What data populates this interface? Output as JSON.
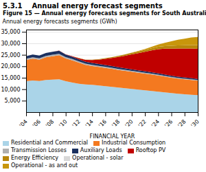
{
  "chart_data": {
    "type": "area",
    "stacked": true,
    "title": "5.3.1    Annual energy forecast segments",
    "subtitle": "Figure 15 — Annual energy forecasts segments for South Australia",
    "xlabel": "FINANCIAL YEAR",
    "ylabel": "Annual energy forecasts segments (GWh)",
    "x": [
      2004,
      2005,
      2006,
      2007,
      2008,
      2009,
      2010,
      2011,
      2012,
      2013,
      2014,
      2015,
      2016,
      2017,
      2018,
      2019,
      2020,
      2021,
      2022,
      2023,
      2024,
      2025,
      2026,
      2027,
      2028,
      2029,
      2030
    ],
    "xlim": [
      2004,
      2030
    ],
    "xticks": [
      {
        "value": 2004,
        "label": "'04"
      },
      {
        "value": 2006,
        "label": "'06"
      },
      {
        "value": 2008,
        "label": "'08"
      },
      {
        "value": 2010,
        "label": "'10"
      },
      {
        "value": 2012,
        "label": "'12"
      },
      {
        "value": 2014,
        "label": "'14"
      },
      {
        "value": 2016,
        "label": "'16"
      },
      {
        "value": 2018,
        "label": "'18"
      },
      {
        "value": 2020,
        "label": "'20"
      },
      {
        "value": 2022,
        "label": "'22"
      },
      {
        "value": 2024,
        "label": "'24"
      },
      {
        "value": 2026,
        "label": "'26"
      },
      {
        "value": 2028,
        "label": "'28"
      },
      {
        "value": 2030,
        "label": "'30"
      }
    ],
    "ylim": [
      0,
      36000
    ],
    "yticks": [
      {
        "value": 5000,
        "label": "5,000"
      },
      {
        "value": 10000,
        "label": "10,000"
      },
      {
        "value": 15000,
        "label": "15,000"
      },
      {
        "value": 20000,
        "label": "20,000"
      },
      {
        "value": 25000,
        "label": "25,000"
      },
      {
        "value": 30000,
        "label": "30,000"
      },
      {
        "value": 35000,
        "label": "35,000"
      }
    ],
    "grid": true,
    "legend": "bottom",
    "series": [
      {
        "name": "Residential and Commercial",
        "color": "#aad4e8",
        "values": [
          13500,
          13800,
          13600,
          14000,
          14200,
          14300,
          13500,
          12900,
          12400,
          12100,
          11900,
          11600,
          11300,
          11000,
          10700,
          10400,
          10100,
          9800,
          9500,
          9200,
          8900,
          8600,
          8300,
          8000,
          7800,
          7600,
          7400
        ]
      },
      {
        "name": "Industrial Consumption",
        "color": "#f47920",
        "values": [
          9200,
          9500,
          9300,
          9900,
          10200,
          10500,
          9900,
          9700,
          9200,
          8500,
          8200,
          8100,
          8000,
          7900,
          7700,
          7600,
          7500,
          7400,
          7300,
          7200,
          7100,
          6900,
          6700,
          6600,
          6500,
          6400,
          6300
        ]
      },
      {
        "name": "Transmission Losses",
        "color": "#b0b0b0",
        "values": [
          600,
          620,
          610,
          630,
          640,
          650,
          600,
          580,
          560,
          540,
          520,
          500,
          480,
          460,
          440,
          420,
          410,
          400,
          390,
          380,
          370,
          360,
          350,
          340,
          330,
          320,
          310
        ]
      },
      {
        "name": "Auxiliary Loads",
        "color": "#1a3060",
        "values": [
          1100,
          1200,
          1150,
          1250,
          1300,
          1350,
          1100,
          1000,
          900,
          850,
          800,
          780,
          760,
          740,
          720,
          700,
          680,
          660,
          640,
          620,
          600,
          580,
          560,
          540,
          520,
          510,
          500
        ]
      },
      {
        "name": "Rooftop PV",
        "color": "#c00000",
        "values": [
          0,
          0,
          0,
          0,
          0,
          30,
          100,
          200,
          450,
          800,
          1300,
          1900,
          2700,
          3500,
          4500,
          5500,
          6500,
          7500,
          8500,
          9500,
          10500,
          11200,
          11800,
          12300,
          12600,
          12900,
          13100
        ]
      },
      {
        "name": "Energy Efficiency",
        "color": "#b8860b",
        "values": [
          0,
          0,
          0,
          0,
          0,
          0,
          0,
          30,
          80,
          120,
          170,
          240,
          310,
          390,
          470,
          560,
          650,
          740,
          840,
          940,
          1040,
          1140,
          1240,
          1340,
          1440,
          1540,
          1640
        ]
      },
      {
        "name": "Operational - solar",
        "color": "#d8d8d8",
        "values": [
          0,
          0,
          0,
          0,
          0,
          0,
          0,
          0,
          0,
          0,
          0,
          0,
          0,
          0,
          0,
          0,
          0,
          0,
          0,
          0,
          0,
          0,
          0,
          0,
          0,
          0,
          0
        ]
      },
      {
        "name": "Operational - as and out",
        "color": "#c8960c",
        "values": [
          0,
          0,
          0,
          0,
          0,
          0,
          0,
          0,
          0,
          0,
          0,
          0,
          0,
          0,
          0,
          40,
          90,
          180,
          360,
          630,
          1000,
          1480,
          1950,
          2450,
          2850,
          3250,
          3550
        ]
      }
    ]
  }
}
